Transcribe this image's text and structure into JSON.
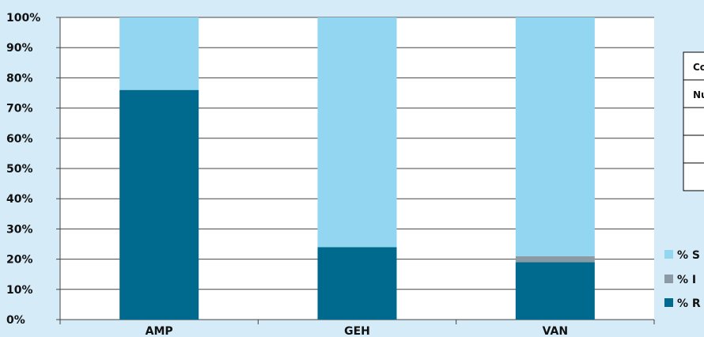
{
  "chart_data": {
    "type": "bar",
    "stacked": true,
    "percent_stacked": true,
    "categories": [
      "AMP",
      "GEH",
      "VAN"
    ],
    "series": [
      {
        "name": "% R",
        "color": "#006a8e",
        "values": [
          76,
          24,
          19
        ]
      },
      {
        "name": "% I",
        "color": "#8a9ba6",
        "values": [
          0,
          0,
          2
        ]
      },
      {
        "name": "% S",
        "color": "#92d6f2",
        "values": [
          24,
          76,
          79
        ]
      }
    ],
    "ylim": [
      0,
      100
    ],
    "ytick_labels": [
      "0%",
      "10%",
      "20%",
      "30%",
      "40%",
      "50%",
      "60%",
      "70%",
      "80%",
      "90%",
      "100%"
    ],
    "grid": true,
    "legend_position": "right",
    "legend_order": [
      "% S",
      "% I",
      "% R"
    ]
  },
  "side_table": {
    "header_labels": [
      "Co",
      "Nu"
    ],
    "empty_rows": 3
  },
  "colors": {
    "background": "#d5ecf8",
    "plot_area": "#ffffff",
    "grid": "#444444"
  }
}
